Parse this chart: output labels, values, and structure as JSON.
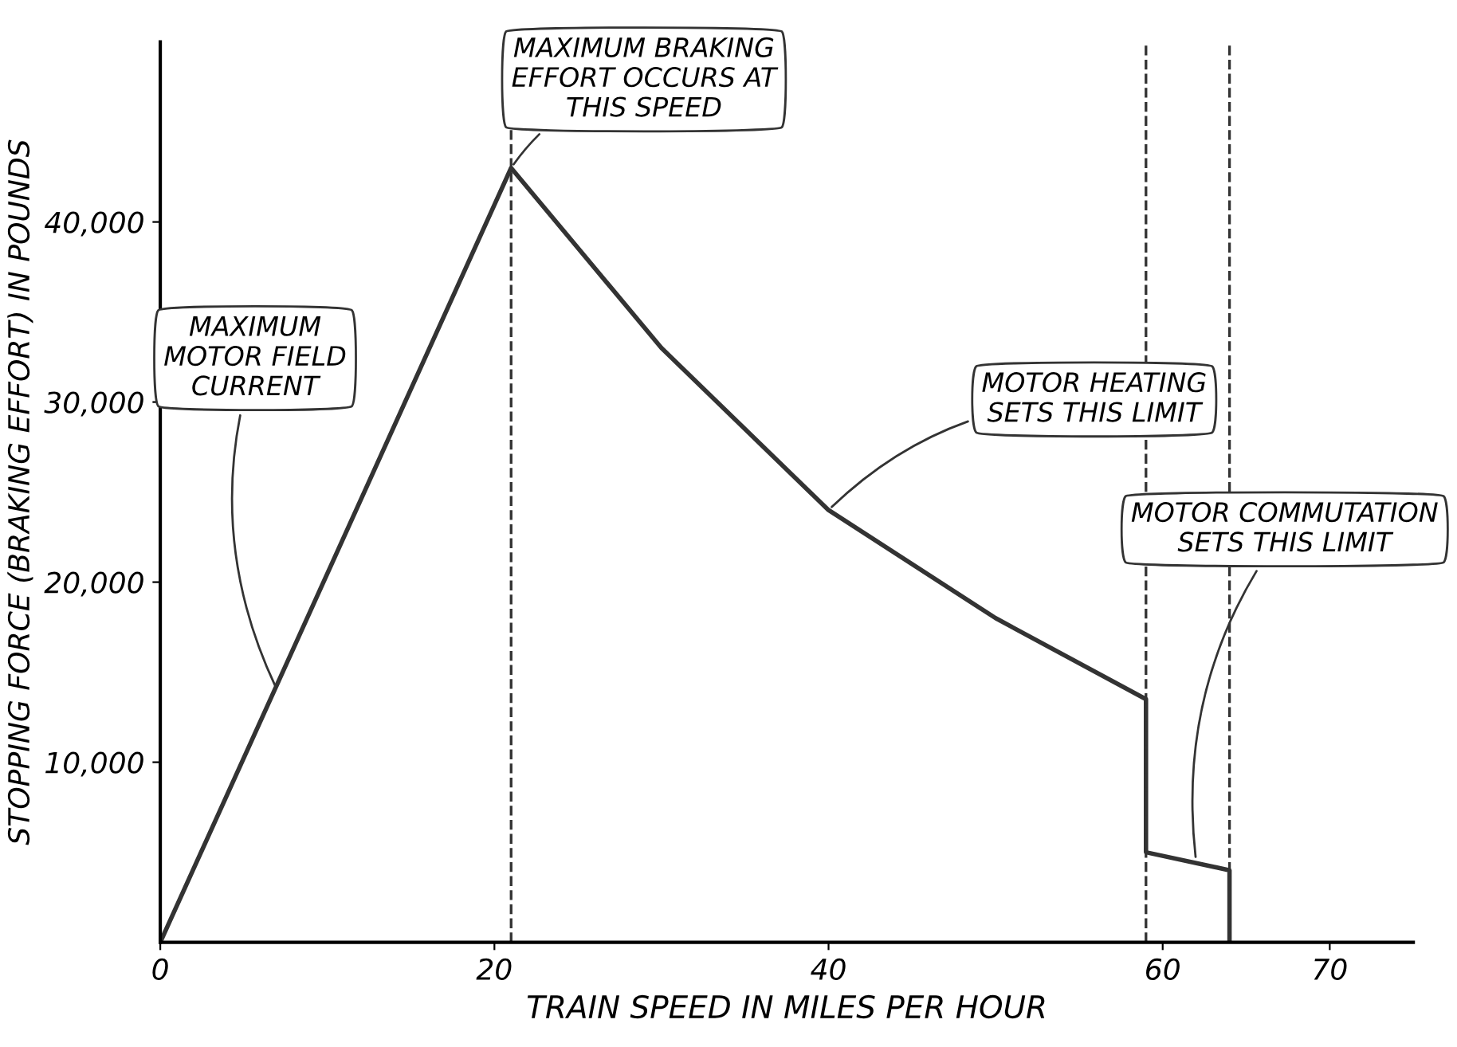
{
  "chart_data": {
    "type": "line",
    "xlabel": "TRAIN SPEED IN MILES PER HOUR",
    "ylabel": "STOPPING FORCE (BRAKING EFFORT) IN POUNDS",
    "x": [
      0,
      21,
      30,
      40,
      50,
      59,
      59,
      64,
      64
    ],
    "series": [
      {
        "color": "#333333",
        "values": [
          0,
          43000,
          33000,
          24000,
          18000,
          13500,
          5000,
          4000,
          0
        ]
      }
    ],
    "xlim": [
      0,
      75
    ],
    "ylim": [
      0,
      50000
    ],
    "xticks": [
      0,
      20,
      40,
      60,
      70
    ],
    "yticks": [
      {
        "value": 10000,
        "label": "10,000"
      },
      {
        "value": 20000,
        "label": "20,000"
      },
      {
        "value": 30000,
        "label": "30,000"
      },
      {
        "value": 40000,
        "label": "40,000"
      }
    ],
    "ref_lines": [
      {
        "axis": "x",
        "value": 21,
        "line_style": "dashed"
      },
      {
        "axis": "x",
        "value": 59,
        "line_style": "dashed"
      },
      {
        "axis": "x",
        "value": 64,
        "line_style": "dashed"
      }
    ],
    "annotations": [
      {
        "text": "MAXIMUM\nMOTOR FIELD\nCURRENT",
        "x": 7,
        "y": 14000
      },
      {
        "text": "MAXIMUM BRAKING\nEFFORT OCCURS AT\nTHIS SPEED",
        "x": 21,
        "y": 43000
      },
      {
        "text": "MOTOR HEATING\nSETS THIS LIMIT",
        "x": 40,
        "y": 24000
      },
      {
        "text": "MOTOR COMMUTATION\nSETS THIS LIMIT",
        "x": 62,
        "y": 4500
      }
    ],
    "grid": false,
    "legend": false,
    "marker": "none",
    "line_style": "solid"
  }
}
